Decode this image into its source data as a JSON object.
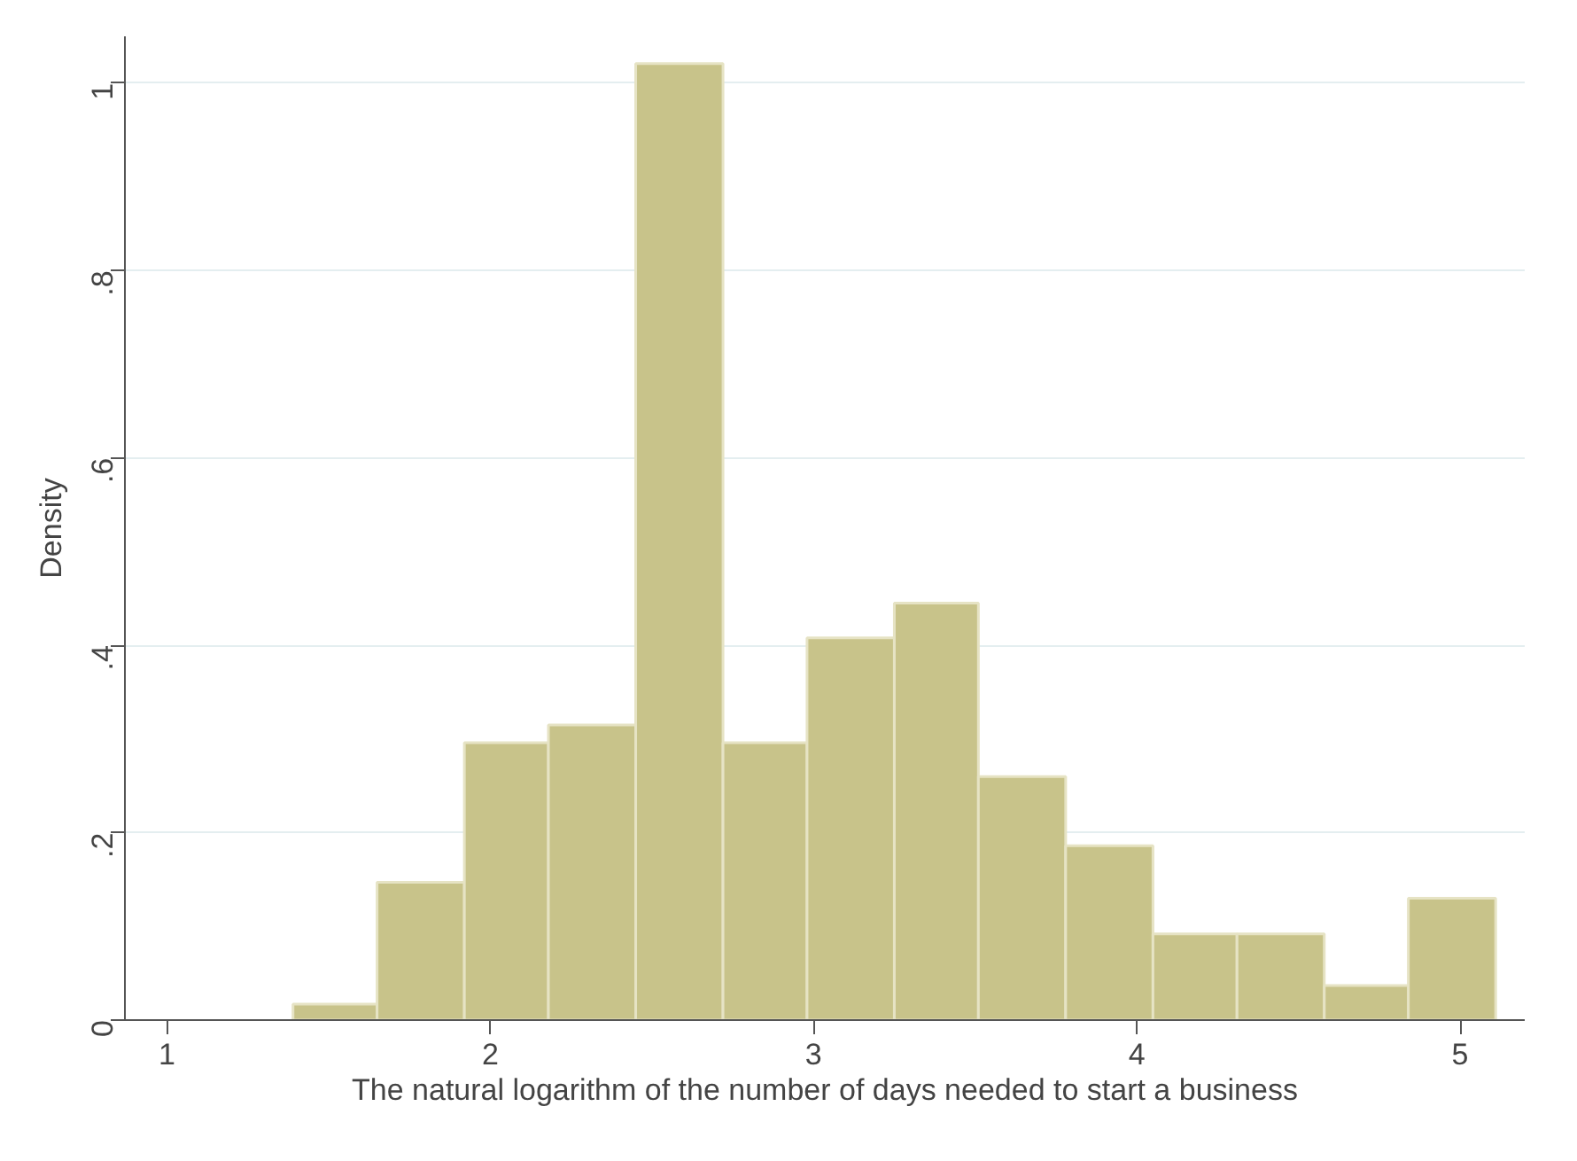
{
  "chart_data": {
    "type": "histogram",
    "xlabel": "The natural logarithm of the number of days needed to start a business",
    "ylabel": "Density",
    "bins": [
      1.39,
      1.65,
      1.92,
      2.18,
      2.45,
      2.72,
      2.98,
      3.25,
      3.51,
      3.78,
      4.05,
      4.31,
      4.58,
      4.84,
      5.11
    ],
    "values": [
      0.017,
      0.147,
      0.296,
      0.315,
      1.021,
      0.296,
      0.408,
      0.445,
      0.26,
      0.186,
      0.092,
      0.092,
      0.037,
      0.13
    ],
    "color": "#c8c38a",
    "xlim": [
      0.87,
      5.2
    ],
    "ylim": [
      0,
      1.05
    ],
    "xticks": [
      1,
      2,
      3,
      4,
      5
    ],
    "yticks": [
      {
        "value": 0,
        "label": "0"
      },
      {
        "value": 0.2,
        "label": ".2"
      },
      {
        "value": 0.4,
        "label": ".4"
      },
      {
        "value": 0.6,
        "label": ".6"
      },
      {
        "value": 0.8,
        "label": ".8"
      },
      {
        "value": 1,
        "label": "1"
      }
    ],
    "grid": "y"
  }
}
